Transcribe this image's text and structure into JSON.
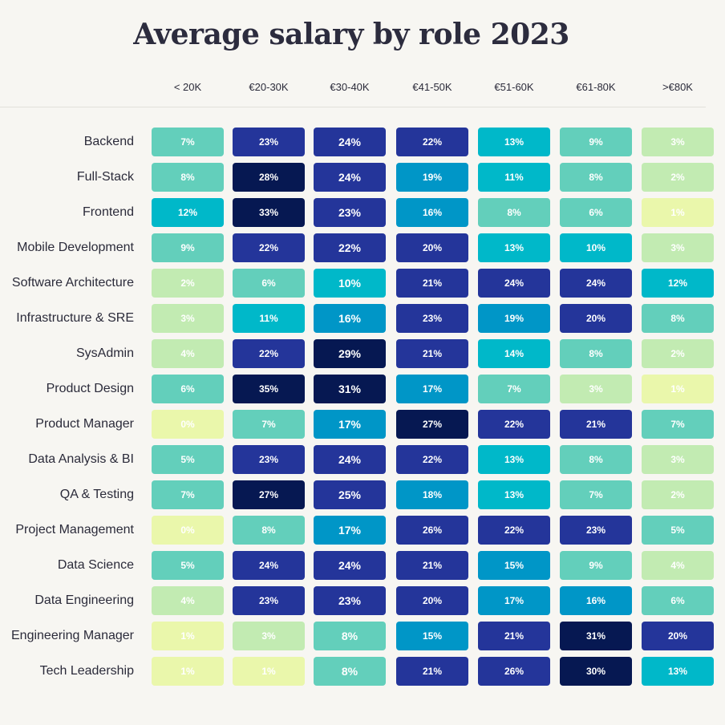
{
  "chart_data": {
    "type": "heatmap",
    "title": "Average salary by role 2023",
    "columns": [
      "< 20K",
      "€20-30K",
      "€30-40K",
      "€41-50K",
      "€51-60K",
      "€61-80K",
      ">€80K"
    ],
    "rows": [
      {
        "label": "Backend",
        "values": [
          7,
          23,
          24,
          22,
          13,
          9,
          3
        ]
      },
      {
        "label": "Full-Stack",
        "values": [
          8,
          28,
          24,
          19,
          11,
          8,
          2
        ]
      },
      {
        "label": "Frontend",
        "values": [
          12,
          33,
          23,
          16,
          8,
          6,
          1
        ]
      },
      {
        "label": "Mobile Development",
        "values": [
          9,
          22,
          22,
          20,
          13,
          10,
          3
        ]
      },
      {
        "label": "Software Architecture",
        "values": [
          2,
          6,
          10,
          21,
          24,
          24,
          12
        ]
      },
      {
        "label": "Infrastructure & SRE",
        "values": [
          3,
          11,
          16,
          23,
          19,
          20,
          8
        ]
      },
      {
        "label": "SysAdmin",
        "values": [
          4,
          22,
          29,
          21,
          14,
          8,
          2
        ]
      },
      {
        "label": "Product Design",
        "values": [
          6,
          35,
          31,
          17,
          7,
          3,
          1
        ]
      },
      {
        "label": "Product Manager",
        "values": [
          0,
          7,
          17,
          27,
          22,
          21,
          7
        ]
      },
      {
        "label": "Data Analysis & BI",
        "values": [
          5,
          23,
          24,
          22,
          13,
          8,
          3
        ]
      },
      {
        "label": "QA & Testing",
        "values": [
          7,
          27,
          25,
          18,
          13,
          7,
          2
        ]
      },
      {
        "label": "Project Management",
        "values": [
          0,
          8,
          17,
          26,
          22,
          23,
          5
        ]
      },
      {
        "label": "Data Science",
        "values": [
          5,
          24,
          24,
          21,
          15,
          9,
          4
        ]
      },
      {
        "label": "Data Engineering",
        "values": [
          4,
          23,
          23,
          20,
          17,
          16,
          6
        ]
      },
      {
        "label": "Engineering Manager",
        "values": [
          1,
          3,
          8,
          15,
          21,
          31,
          20
        ]
      },
      {
        "label": "Tech Leadership",
        "values": [
          1,
          1,
          8,
          21,
          26,
          30,
          13
        ]
      }
    ],
    "value_suffix": "%",
    "color_scale": [
      {
        "max": 1,
        "color": "#eaf7ab"
      },
      {
        "max": 4,
        "color": "#c2ebb2"
      },
      {
        "max": 9,
        "color": "#63cfbb"
      },
      {
        "max": 14,
        "color": "#00b8c9"
      },
      {
        "max": 19,
        "color": "#0096c7"
      },
      {
        "max": 26,
        "color": "#24359a"
      },
      {
        "max": 100,
        "color": "#061852"
      }
    ]
  }
}
